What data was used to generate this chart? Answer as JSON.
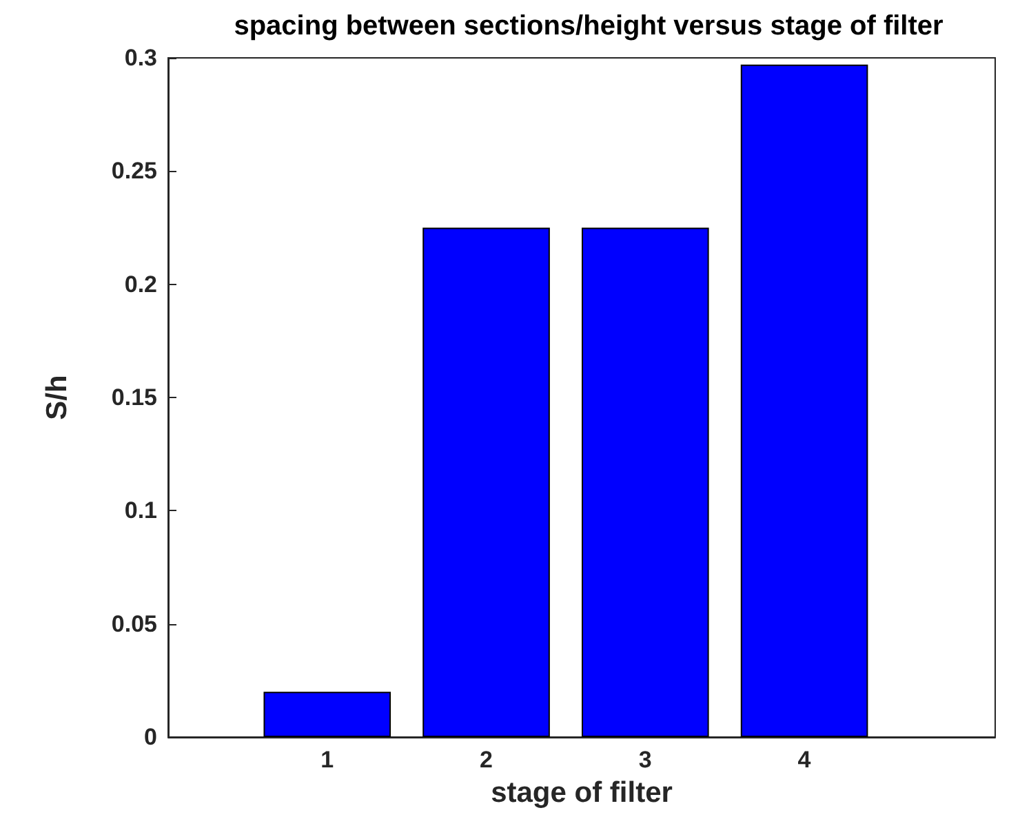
{
  "chart_data": {
    "type": "bar",
    "title": "spacing between sections/height versus stage of filter",
    "xlabel": "stage of filter",
    "ylabel": "S/h",
    "x": [
      1,
      2,
      3,
      4
    ],
    "values": [
      0.02,
      0.225,
      0.225,
      0.297
    ],
    "color": "#0000ff",
    "xlim": [
      0,
      5.2
    ],
    "xticks": [
      1,
      2,
      3,
      4
    ],
    "ylim": [
      0,
      0.3
    ],
    "yticks": [
      0,
      0.05,
      0.1,
      0.15,
      0.2,
      0.25,
      0.3
    ],
    "grid": false
  }
}
